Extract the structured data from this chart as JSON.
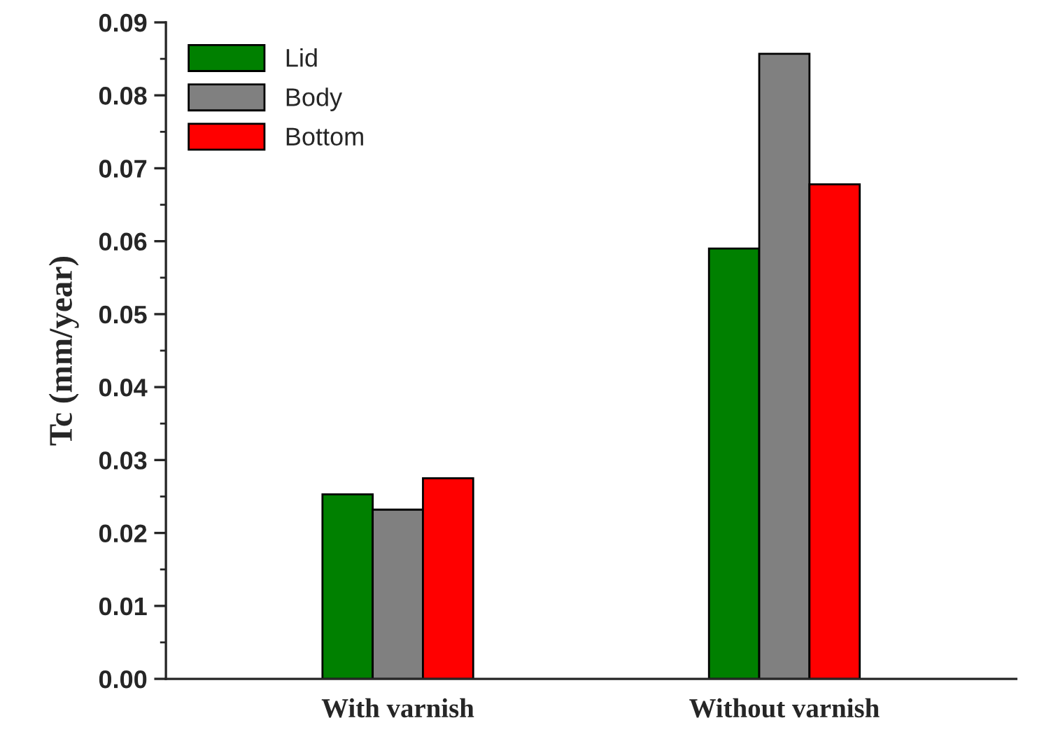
{
  "chart_data": {
    "type": "bar",
    "ylabel": "Tc (mm/year)",
    "categories": [
      "With varnish",
      "Without varnish"
    ],
    "series": [
      {
        "name": "Lid",
        "color": "#008000",
        "values": [
          0.0253,
          0.059
        ]
      },
      {
        "name": "Body",
        "color": "#808080",
        "values": [
          0.0232,
          0.0857
        ]
      },
      {
        "name": "Bottom",
        "color": "#ff0000",
        "values": [
          0.0275,
          0.0678
        ]
      }
    ],
    "ylim": [
      0,
      0.09
    ],
    "yticks": [
      {
        "value": 0,
        "label": "0.00"
      },
      0.01,
      0.02,
      0.03,
      0.04,
      0.05,
      0.06,
      0.07,
      0.08,
      0.09
    ],
    "grid": false,
    "legend": "top left"
  }
}
